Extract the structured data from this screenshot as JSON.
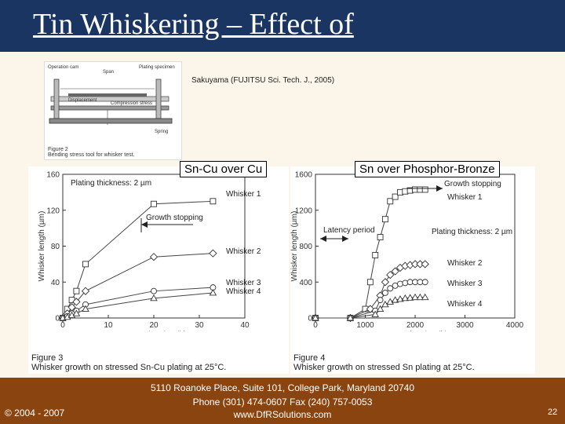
{
  "title": "Tin Whiskering – Effect of",
  "citation": "Sakuyama (FUJITSU Sci. Tech. J., 2005)",
  "figure2": {
    "labels": [
      "Operation cam",
      "Span",
      "Plating specimen",
      "Displacement",
      "Compression stress",
      "Spring"
    ],
    "caption_line1": "Figure 2",
    "caption_line2": "Bending stress tool for whisker test."
  },
  "chart_left": {
    "box_label": "Sn-Cu over Cu",
    "plating_label": "Plating thickness: 2 µm",
    "annotation": "Growth stopping",
    "caption_line1": "Figure 3",
    "caption_line2": "Whisker growth on stressed Sn-Cu plating at 25°C."
  },
  "chart_right": {
    "box_label": "Sn over Phosphor-Bronze",
    "plating_label": "Plating thickness: 2 µm",
    "annotation_growth": "Growth stopping",
    "annotation_latency": "Latency period",
    "caption_line1": "Figure 4",
    "caption_line2": "Whisker growth on stressed Sn plating at 25°C."
  },
  "chart_data": [
    {
      "type": "line",
      "xlabel": "Stress duration (h)",
      "ylabel": "Whisker length (µm)",
      "xlim": [
        0,
        40
      ],
      "ylim": [
        0,
        160
      ],
      "xticks": [
        "0",
        "10",
        "20",
        "30",
        "40"
      ],
      "yticks": [
        "0",
        "40",
        "80",
        "120",
        "160"
      ],
      "series": [
        {
          "name": "Whisker 1",
          "marker": "square",
          "x": [
            0,
            1,
            2,
            3,
            5,
            20,
            33
          ],
          "y": [
            0,
            10,
            20,
            30,
            60,
            127,
            130
          ]
        },
        {
          "name": "Whisker 2",
          "marker": "diamond",
          "x": [
            0,
            1,
            2,
            3,
            5,
            20,
            33
          ],
          "y": [
            0,
            5,
            12,
            18,
            30,
            68,
            72
          ]
        },
        {
          "name": "Whisker 3",
          "marker": "circle",
          "x": [
            0,
            1,
            2,
            3,
            5,
            20,
            33
          ],
          "y": [
            0,
            2,
            5,
            8,
            15,
            30,
            34
          ]
        },
        {
          "name": "Whisker 4",
          "marker": "triangle",
          "x": [
            0,
            1,
            2,
            3,
            5,
            20,
            33
          ],
          "y": [
            0,
            1,
            3,
            5,
            10,
            22,
            28
          ]
        }
      ]
    },
    {
      "type": "line",
      "xlabel": "Stress duration (h)",
      "ylabel": "Whisker length (µm)",
      "xlim": [
        0,
        4000
      ],
      "ylim": [
        0,
        1600
      ],
      "xticks": [
        "0",
        "1000",
        "2000",
        "3000",
        "4000"
      ],
      "yticks": [
        "0",
        "400",
        "800",
        "1200",
        "1600"
      ],
      "series": [
        {
          "name": "Whisker 1",
          "marker": "square",
          "x": [
            0,
            700,
            1000,
            1100,
            1200,
            1300,
            1400,
            1500,
            1600,
            1700,
            1800,
            1900,
            2000,
            2100,
            2200
          ],
          "y": [
            0,
            0,
            100,
            400,
            700,
            900,
            1100,
            1300,
            1350,
            1400,
            1410,
            1420,
            1430,
            1430,
            1430
          ]
        },
        {
          "name": "Whisker 2",
          "marker": "diamond",
          "x": [
            0,
            700,
            1100,
            1300,
            1400,
            1500,
            1600,
            1700,
            1800,
            1900,
            2000,
            2100,
            2200
          ],
          "y": [
            0,
            0,
            100,
            250,
            400,
            480,
            520,
            560,
            580,
            590,
            600,
            600,
            600
          ]
        },
        {
          "name": "Whisker 3",
          "marker": "circle",
          "x": [
            0,
            700,
            1200,
            1300,
            1400,
            1500,
            1600,
            1700,
            1800,
            1900,
            2000,
            2100,
            2200
          ],
          "y": [
            0,
            0,
            80,
            200,
            280,
            330,
            360,
            380,
            390,
            400,
            400,
            400,
            400
          ]
        },
        {
          "name": "Whisker 4",
          "marker": "triangle",
          "x": [
            0,
            700,
            1200,
            1300,
            1400,
            1500,
            1600,
            1700,
            1800,
            1900,
            2000,
            2100,
            2200
          ],
          "y": [
            0,
            0,
            40,
            100,
            150,
            180,
            200,
            210,
            220,
            225,
            230,
            230,
            230
          ]
        }
      ]
    }
  ],
  "footer": {
    "address_line1": "5110 Roanoke Place, Suite 101, College Park, Maryland 20740",
    "address_line2": "Phone (301) 474-0607  Fax (240) 757-0053",
    "address_line3": "www.DfRSolutions.com",
    "copyright": "© 2004 - 2007",
    "page_number": "22"
  }
}
